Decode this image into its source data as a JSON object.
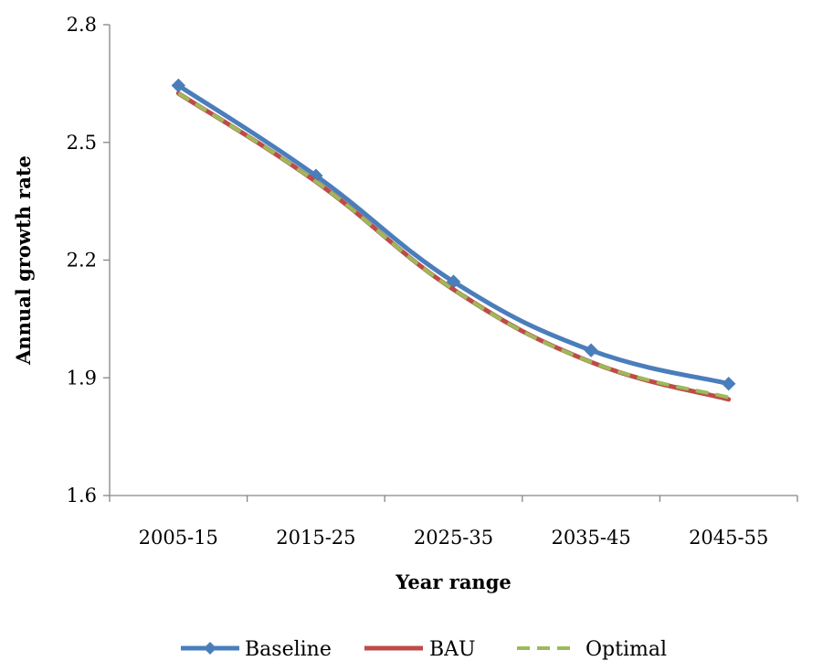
{
  "chart_data": {
    "type": "line",
    "title": "",
    "xlabel": "Year range",
    "ylabel": "Annual growth rate",
    "categories": [
      "2005-15",
      "2015-25",
      "2025-35",
      "2035-45",
      "2045-55"
    ],
    "ylim": [
      1.6,
      2.8
    ],
    "yticks": [
      "1.6",
      "1.9",
      "2.2",
      "2.5",
      "2.8"
    ],
    "grid": false,
    "legend_position": "bottom",
    "series": [
      {
        "name": "Baseline",
        "values": [
          2.645,
          2.415,
          2.145,
          1.97,
          1.885
        ],
        "color": "#4A7EBB",
        "style": "solid",
        "marker": "diamond"
      },
      {
        "name": "BAU",
        "values": [
          2.625,
          2.4,
          2.125,
          1.94,
          1.845
        ],
        "color": "#BE4B48",
        "style": "solid",
        "marker": "none"
      },
      {
        "name": "Optimal",
        "values": [
          2.625,
          2.4,
          2.125,
          1.94,
          1.85
        ],
        "color": "#9BBB59",
        "style": "dashed",
        "marker": "none"
      }
    ]
  }
}
